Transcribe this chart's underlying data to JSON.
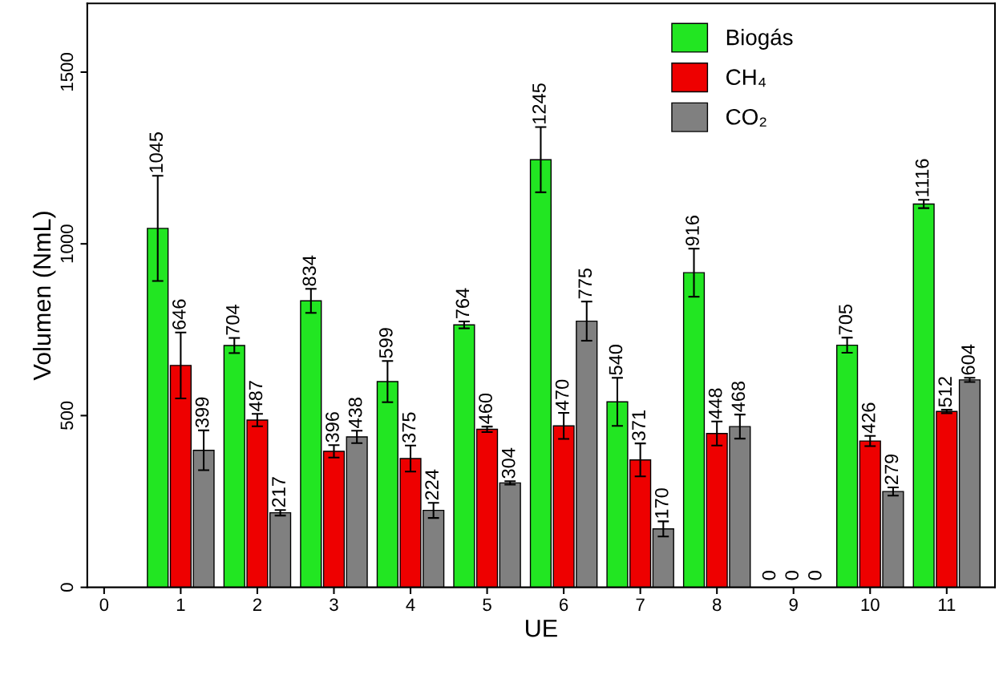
{
  "chart_data": {
    "type": "bar",
    "xlabel": "UE",
    "ylabel": "Volumen (NmL)",
    "x": [
      1,
      2,
      3,
      4,
      5,
      6,
      7,
      8,
      9,
      10,
      11
    ],
    "xlim": [
      -0.22,
      11.63
    ],
    "xticks": [
      0,
      1,
      2,
      3,
      4,
      5,
      6,
      7,
      8,
      9,
      10,
      11
    ],
    "ylim": [
      0,
      1700
    ],
    "yticks": [
      0,
      500,
      1000,
      1500
    ],
    "series": [
      {
        "name": "Biogás",
        "color": "#22e622",
        "values": [
          1045,
          704,
          834,
          599,
          764,
          1245,
          540,
          916,
          0,
          705,
          1116
        ],
        "errors": [
          153,
          22,
          35,
          60,
          10,
          95,
          70,
          70,
          null,
          22,
          12
        ]
      },
      {
        "name": "CH₄",
        "color": "#ee0000",
        "values": [
          646,
          487,
          396,
          375,
          460,
          470,
          371,
          448,
          0,
          426,
          512
        ],
        "errors": [
          96,
          18,
          18,
          38,
          8,
          38,
          48,
          35,
          null,
          15,
          5
        ]
      },
      {
        "name": "CO₂",
        "color": "#808080",
        "values": [
          399,
          217,
          438,
          224,
          304,
          775,
          170,
          468,
          0,
          279,
          604
        ],
        "errors": [
          58,
          8,
          18,
          22,
          5,
          57,
          22,
          35,
          null,
          12,
          6
        ]
      }
    ],
    "data_labels": true,
    "legend": "top right",
    "grid": false
  }
}
